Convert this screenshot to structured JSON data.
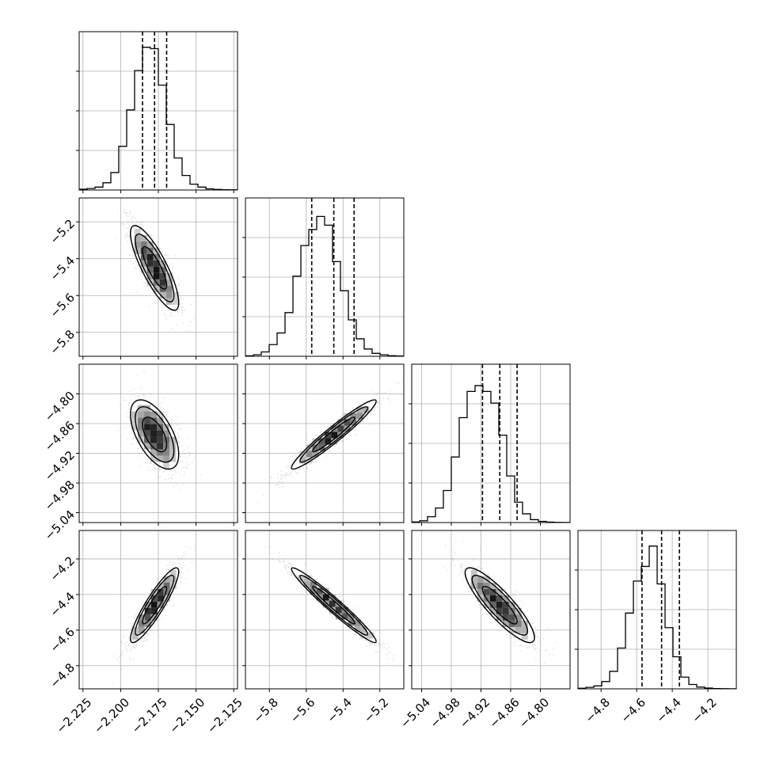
{
  "chart_data": {
    "type": "corner",
    "grid": true,
    "params": [
      {
        "range": [
          -2.2275,
          -2.1225
        ],
        "ticks": [
          "−2.225",
          "−2.200",
          "−2.175",
          "−2.150",
          "−2.125"
        ],
        "quantiles": [
          -2.1855,
          -2.1775,
          -2.1695
        ],
        "hist": [
          0.005,
          0.01,
          0.02,
          0.05,
          0.12,
          0.3,
          0.55,
          0.82,
          0.98,
          0.97,
          0.72,
          0.45,
          0.22,
          0.1,
          0.04,
          0.02,
          0.008,
          0.004,
          0.002,
          0.001
        ]
      },
      {
        "range": [
          -5.93,
          -5.07
        ],
        "ticks": [
          "−5.8",
          "−5.6",
          "−5.4",
          "−5.2"
        ],
        "quantiles": [
          -5.57,
          -5.45,
          -5.34
        ],
        "hist": [
          0.003,
          0.01,
          0.03,
          0.08,
          0.16,
          0.3,
          0.55,
          0.76,
          0.87,
          0.96,
          0.9,
          0.65,
          0.45,
          0.25,
          0.12,
          0.05,
          0.02,
          0.01,
          0.004,
          0.002
        ]
      },
      {
        "range": [
          -5.06,
          -4.74
        ],
        "ticks": [
          "−5.04",
          "−4.98",
          "−4.92",
          "−4.86",
          "−4.80"
        ],
        "quantiles": [
          -4.917,
          -4.882,
          -4.847
        ],
        "hist": [
          0.004,
          0.012,
          0.04,
          0.1,
          0.22,
          0.45,
          0.72,
          0.9,
          0.94,
          0.9,
          0.82,
          0.6,
          0.32,
          0.14,
          0.06,
          0.02,
          0.008,
          0.003,
          0.001,
          0.0005
        ]
      },
      {
        "range": [
          -4.93,
          -4.04
        ],
        "ticks": [
          "−4.8",
          "−4.6",
          "−4.4",
          "−4.2"
        ],
        "quantiles": [
          -4.57,
          -4.46,
          -4.36
        ],
        "hist": [
          0.004,
          0.01,
          0.02,
          0.05,
          0.12,
          0.28,
          0.52,
          0.74,
          0.84,
          0.98,
          0.72,
          0.42,
          0.22,
          0.08,
          0.03,
          0.012,
          0.005,
          0.002,
          0.001,
          0.0005
        ]
      }
    ],
    "correlations": [
      {
        "i": 1,
        "j": 0,
        "rho": -0.82
      },
      {
        "i": 2,
        "j": 0,
        "rho": -0.58
      },
      {
        "i": 2,
        "j": 1,
        "rho": 0.96
      },
      {
        "i": 3,
        "j": 0,
        "rho": 0.9
      },
      {
        "i": 3,
        "j": 1,
        "rho": -0.97
      },
      {
        "i": 3,
        "j": 2,
        "rho": -0.87
      }
    ]
  }
}
